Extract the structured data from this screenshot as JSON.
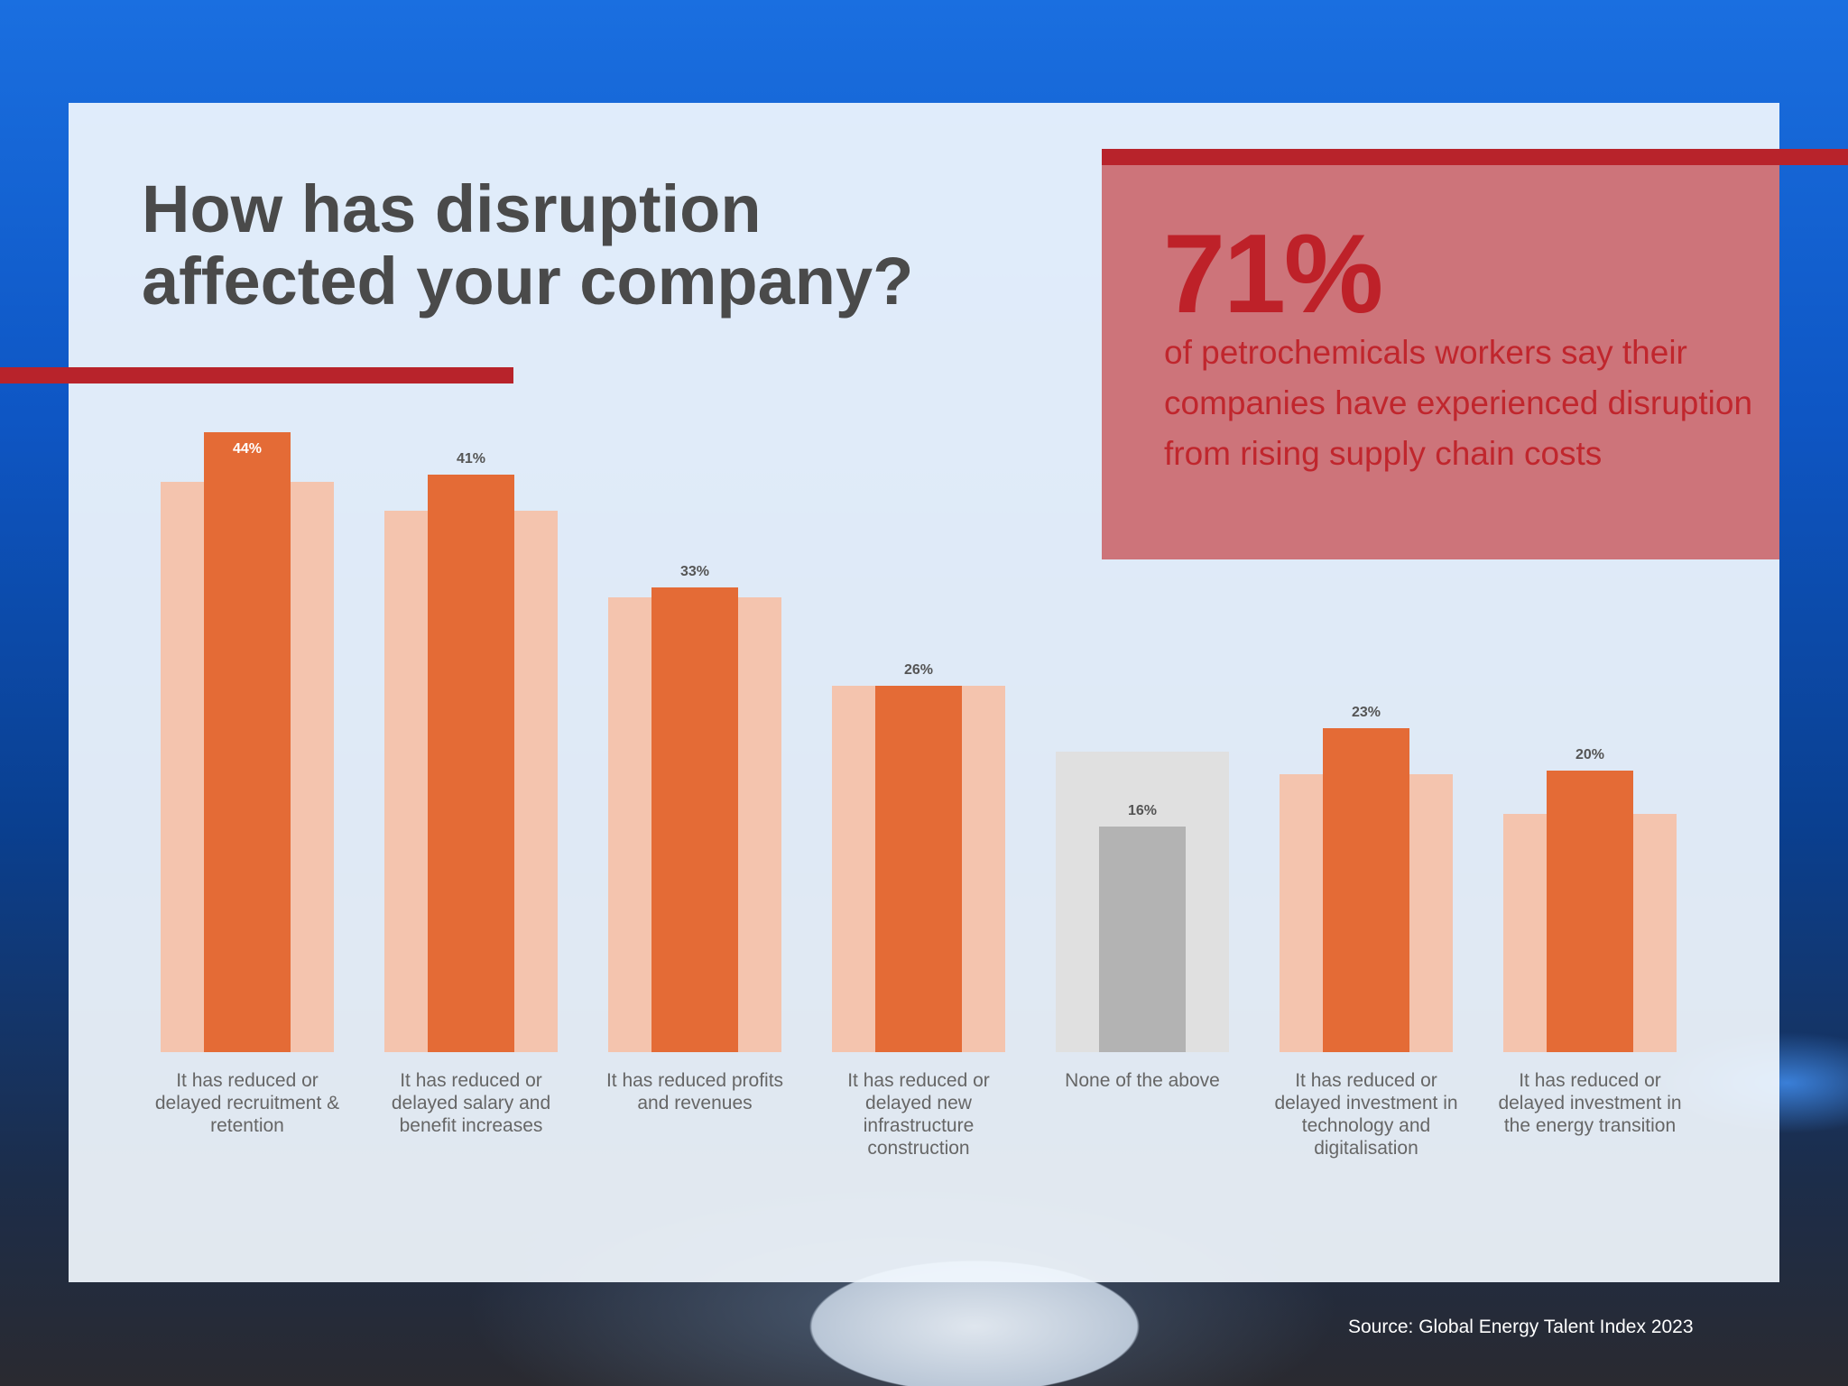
{
  "title_line1": "How has disruption",
  "title_line2": "affected your company?",
  "callout": {
    "stat": "71%",
    "text": "of petrochemicals workers say their companies have experienced disruption from rising supply chain costs"
  },
  "source": "Source: Global Energy Talent Index 2023",
  "colors": {
    "bar": "#e46b36",
    "bar_bg": "#f4c4ae",
    "none_bar": "#b3b3b3",
    "none_bg": "#e0e0e0",
    "accent_red": "#b8232b"
  },
  "chart_data": {
    "type": "bar",
    "title": "How has disruption affected your company?",
    "categories": [
      "It has reduced or delayed recruitment & retention",
      "It has reduced or delayed salary and benefit increases",
      "It has reduced profits and revenues",
      "It has reduced or delayed new infrastructure construction",
      "None of the above",
      "It has reduced or delayed investment in technology and digitalisation",
      "It has reduced or delayed investment in the energy transition"
    ],
    "category_lines": [
      [
        "It has reduced or",
        "delayed recruitment &",
        "retention"
      ],
      [
        "It has reduced or",
        "delayed salary and",
        "benefit increases"
      ],
      [
        "It has reduced profits",
        "and revenues"
      ],
      [
        "It has reduced or",
        "delayed new",
        "infrastructure",
        "construction"
      ],
      [
        "None of the above"
      ],
      [
        "It has reduced or",
        "delayed investment in",
        "technology and",
        "digitalisation"
      ],
      [
        "It has reduced or",
        "delayed investment in",
        "the energy transition"
      ]
    ],
    "values": [
      44,
      41,
      33,
      26,
      16,
      23,
      20
    ],
    "value_labels": [
      "44%",
      "41%",
      "33%",
      "26%",
      "16%",
      "23%",
      "20%"
    ],
    "background_values": [
      40.5,
      38.4,
      32.3,
      26,
      21.3,
      19.7,
      16.9
    ],
    "ylim": [
      0,
      44
    ]
  }
}
